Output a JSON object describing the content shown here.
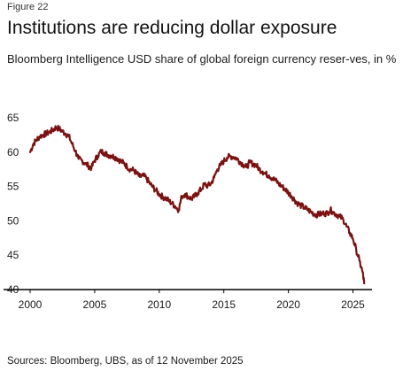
{
  "figure_label": "Figure 22",
  "title": "Institutions are reducing dollar exposure",
  "subtitle": "Bloomberg Intelligence USD share of global foreign currency reser-ves, in %",
  "source": "Sources: Bloomberg, UBS, as of 12 November 2025",
  "colors": {
    "series": "#7a1212",
    "axis": "#000000",
    "text": "#1a1a1a"
  },
  "chart_data": {
    "type": "line",
    "title": "Institutions are reducing dollar exposure",
    "subtitle": "Bloomberg Intelligence USD share of global foreign currency reser-ves, in %",
    "xlabel": "",
    "ylabel": "",
    "xlim": [
      2000,
      2026.2
    ],
    "ylim": [
      40,
      65
    ],
    "x_ticks": [
      2000,
      2005,
      2010,
      2015,
      2020,
      2025
    ],
    "y_ticks": [
      40,
      45,
      50,
      55,
      60,
      65
    ],
    "grid": false,
    "legend": "none",
    "series": [
      {
        "color": "#7a1212",
        "x": [
          2000.0,
          2000.25,
          2000.5,
          2000.75,
          2001.0,
          2001.25,
          2001.5,
          2001.75,
          2002.0,
          2002.25,
          2002.5,
          2002.75,
          2003.0,
          2003.25,
          2003.5,
          2003.75,
          2004.0,
          2004.25,
          2004.5,
          2004.75,
          2005.0,
          2005.25,
          2005.5,
          2005.75,
          2006.0,
          2006.25,
          2006.5,
          2006.75,
          2007.0,
          2007.25,
          2007.5,
          2007.75,
          2008.0,
          2008.25,
          2008.5,
          2008.75,
          2009.0,
          2009.25,
          2009.5,
          2009.75,
          2010.0,
          2010.25,
          2010.5,
          2010.75,
          2011.0,
          2011.25,
          2011.5,
          2011.75,
          2012.0,
          2012.25,
          2012.5,
          2012.75,
          2013.0,
          2013.25,
          2013.5,
          2013.75,
          2014.0,
          2014.25,
          2014.5,
          2014.75,
          2015.0,
          2015.25,
          2015.5,
          2015.75,
          2016.0,
          2016.25,
          2016.5,
          2016.75,
          2017.0,
          2017.25,
          2017.5,
          2017.75,
          2018.0,
          2018.25,
          2018.5,
          2018.75,
          2019.0,
          2019.25,
          2019.5,
          2019.75,
          2020.0,
          2020.25,
          2020.5,
          2020.75,
          2021.0,
          2021.25,
          2021.5,
          2021.75,
          2022.0,
          2022.25,
          2022.5,
          2022.75,
          2023.0,
          2023.25,
          2023.5,
          2023.75,
          2024.0,
          2024.25,
          2024.5,
          2024.75,
          2025.0,
          2025.25,
          2025.5,
          2025.75,
          2025.87
        ],
        "y": [
          60.0,
          61.2,
          61.8,
          62.3,
          62.5,
          62.7,
          62.9,
          63.2,
          63.6,
          63.4,
          63.0,
          62.7,
          62.3,
          61.2,
          60.2,
          59.0,
          58.8,
          58.4,
          58.0,
          57.7,
          58.8,
          59.5,
          60.1,
          59.9,
          59.6,
          59.5,
          59.3,
          59.1,
          58.7,
          58.4,
          57.9,
          57.5,
          57.4,
          56.9,
          56.4,
          56.6,
          56.2,
          55.5,
          54.9,
          54.4,
          53.9,
          53.5,
          53.3,
          52.9,
          52.5,
          52.1,
          51.6,
          53.6,
          53.9,
          53.5,
          53.2,
          53.6,
          54.1,
          54.6,
          55.3,
          55.1,
          55.4,
          56.3,
          57.5,
          58.1,
          58.7,
          59.2,
          59.4,
          59.3,
          59.1,
          58.6,
          58.2,
          57.8,
          58.5,
          58.3,
          58.1,
          57.5,
          57.2,
          56.8,
          56.6,
          56.2,
          55.9,
          55.4,
          55.0,
          54.6,
          54.1,
          53.6,
          53.0,
          52.5,
          52.2,
          51.9,
          51.6,
          51.3,
          51.0,
          50.9,
          51.0,
          51.1,
          51.1,
          51.6,
          51.2,
          50.9,
          50.6,
          50.2,
          49.2,
          48.3,
          47.4,
          45.8,
          44.2,
          42.5,
          40.9
        ]
      }
    ]
  }
}
